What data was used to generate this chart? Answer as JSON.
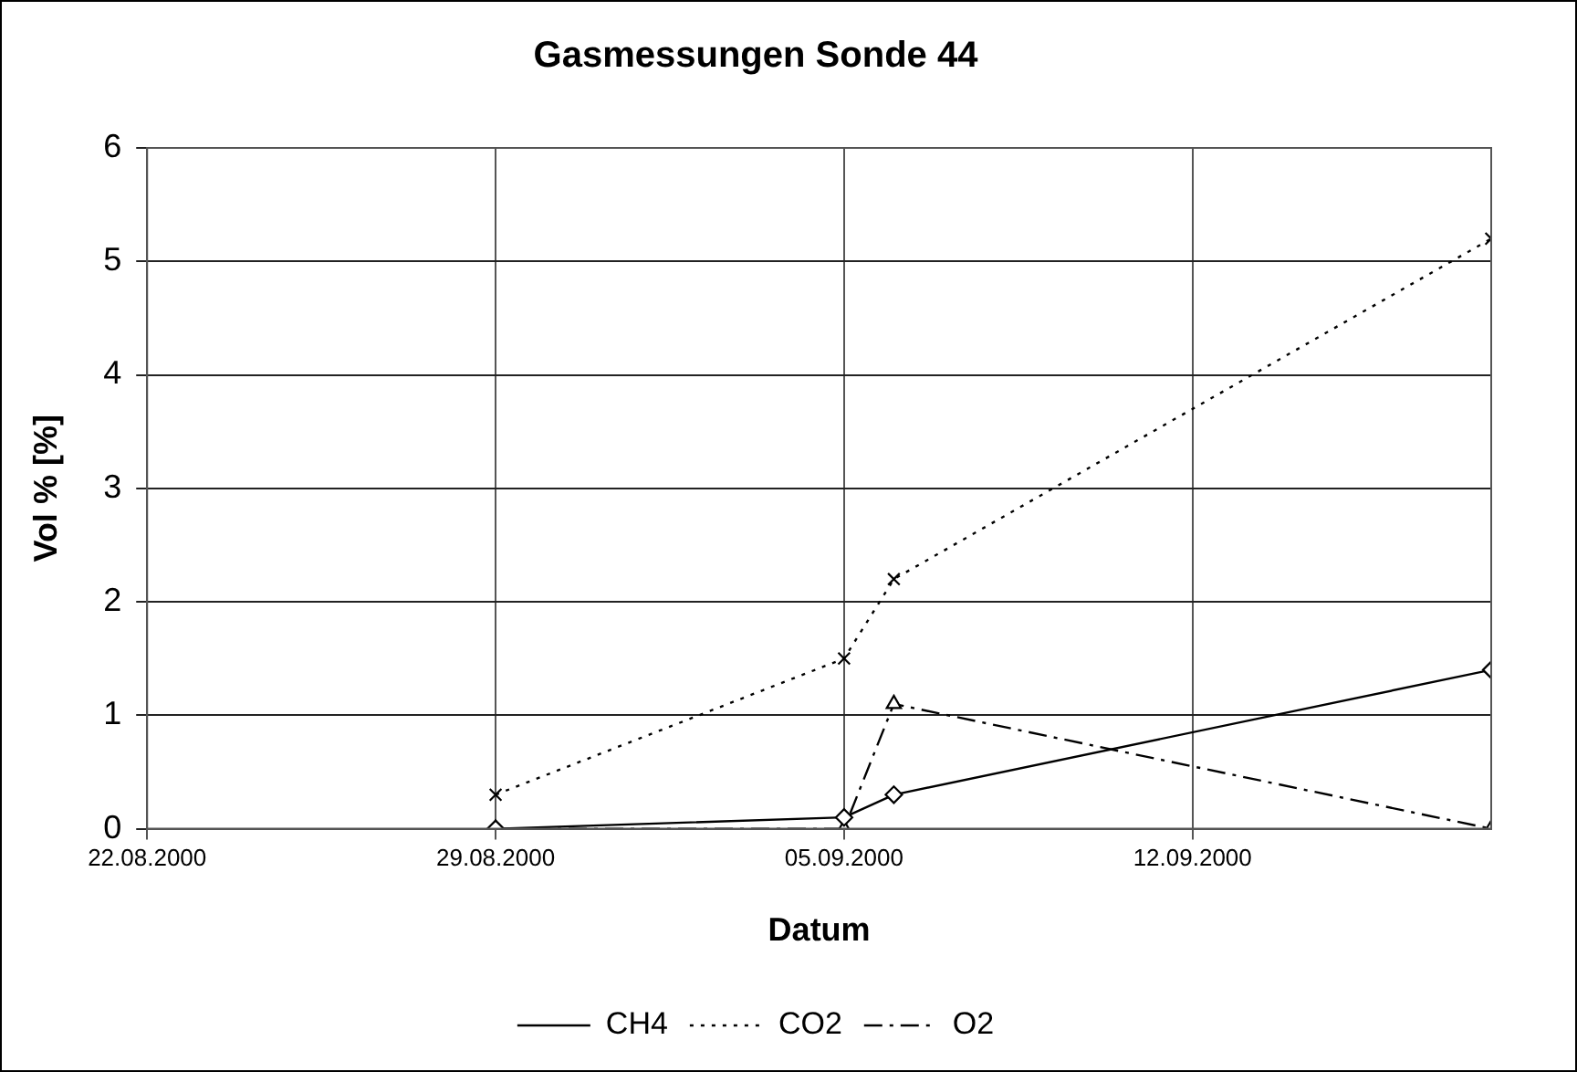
{
  "chart_data": {
    "type": "line",
    "title": "Gasmessungen Sonde 44",
    "xlabel": "Datum",
    "ylabel": "Vol % [%]",
    "x": [
      "2000-08-29",
      "2000-09-05",
      "2000-09-06",
      "2000-09-18"
    ],
    "series": [
      {
        "name": "CH4",
        "color": "#000000",
        "values": [
          0,
          0.1,
          0.3,
          1.4
        ],
        "marker": "diamond",
        "line_style": "solid"
      },
      {
        "name": "CO2",
        "color": "#000000",
        "values": [
          0.3,
          1.5,
          2.2,
          5.2
        ],
        "marker": "cross",
        "line_style": "dotted"
      },
      {
        "name": "O2",
        "color": "#000000",
        "values": [
          0,
          0,
          1.1,
          0
        ],
        "marker": "triangle",
        "line_style": "dashdot"
      }
    ],
    "xlim": [
      "2000-08-22",
      "2000-09-18"
    ],
    "xticks": [
      {
        "value": "2000-08-22",
        "label": "22.08.2000"
      },
      {
        "value": "2000-08-29",
        "label": "29.08.2000"
      },
      {
        "value": "2000-09-05",
        "label": "05.09.2000"
      },
      {
        "value": "2000-09-12",
        "label": "12.09.2000"
      }
    ],
    "ylim": [
      0,
      6
    ],
    "yticks": [
      0,
      1,
      2,
      3,
      4,
      5,
      6
    ],
    "grid": true,
    "legend": "bottom"
  }
}
